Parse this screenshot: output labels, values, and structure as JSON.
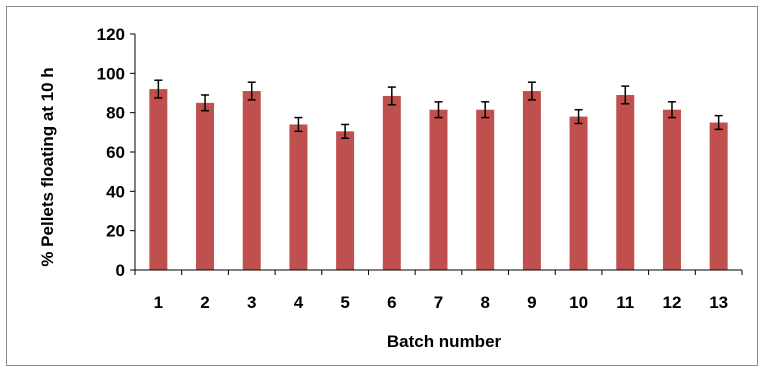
{
  "chart_data": {
    "type": "bar",
    "title": "",
    "xlabel": "Batch number",
    "ylabel": "% Pellets floating at 10 h",
    "categories": [
      "1",
      "2",
      "3",
      "4",
      "5",
      "6",
      "7",
      "8",
      "9",
      "10",
      "11",
      "12",
      "13"
    ],
    "values": [
      92,
      85,
      91,
      74,
      70.5,
      88.5,
      81.5,
      81.5,
      91,
      78,
      89,
      81.5,
      75
    ],
    "errors": [
      4.5,
      4,
      4.5,
      3.5,
      3.5,
      4.5,
      4,
      4,
      4.5,
      3.5,
      4.5,
      4,
      3.5
    ],
    "ylim": [
      0,
      120
    ],
    "yticks": [
      0,
      20,
      40,
      60,
      80,
      100,
      120
    ],
    "grid": false,
    "legend": "none",
    "colors": {
      "bar": "#c0504d",
      "axis": "#000000",
      "error_bar": "#000000"
    }
  }
}
